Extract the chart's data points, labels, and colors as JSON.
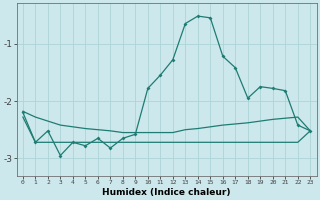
{
  "xlabel": "Humidex (Indice chaleur)",
  "background_color": "#cce8ec",
  "grid_color": "#aed4d8",
  "line_color": "#1e7c72",
  "x_values": [
    0,
    1,
    2,
    3,
    4,
    5,
    6,
    7,
    8,
    9,
    10,
    11,
    12,
    13,
    14,
    15,
    16,
    17,
    18,
    19,
    20,
    21,
    22,
    23
  ],
  "line_main": [
    -2.2,
    -2.72,
    -2.52,
    -2.95,
    -2.72,
    -2.78,
    -2.65,
    -2.82,
    -2.65,
    -2.58,
    -1.78,
    -1.55,
    -1.28,
    -0.65,
    -0.52,
    -0.55,
    -1.22,
    -1.42,
    -1.95,
    -1.75,
    -1.78,
    -1.82,
    -2.42,
    -2.52
  ],
  "line_upper": [
    -2.18,
    -2.28,
    -2.35,
    -2.42,
    -2.45,
    -2.48,
    -2.5,
    -2.52,
    -2.55,
    -2.55,
    -2.55,
    -2.55,
    -2.55,
    -2.5,
    -2.48,
    -2.45,
    -2.42,
    -2.4,
    -2.38,
    -2.35,
    -2.32,
    -2.3,
    -2.28,
    -2.52
  ],
  "line_lower": [
    -2.28,
    -2.72,
    -2.72,
    -2.72,
    -2.72,
    -2.72,
    -2.72,
    -2.72,
    -2.72,
    -2.72,
    -2.72,
    -2.72,
    -2.72,
    -2.72,
    -2.72,
    -2.72,
    -2.72,
    -2.72,
    -2.72,
    -2.72,
    -2.72,
    -2.72,
    -2.72,
    -2.52
  ],
  "ylim": [
    -3.3,
    -0.3
  ],
  "yticks": [
    -3,
    -2,
    -1
  ],
  "xlim": [
    -0.5,
    23.5
  ],
  "marker_size": 2.0,
  "line_width": 0.9,
  "figsize": [
    3.2,
    2.0
  ],
  "dpi": 100
}
